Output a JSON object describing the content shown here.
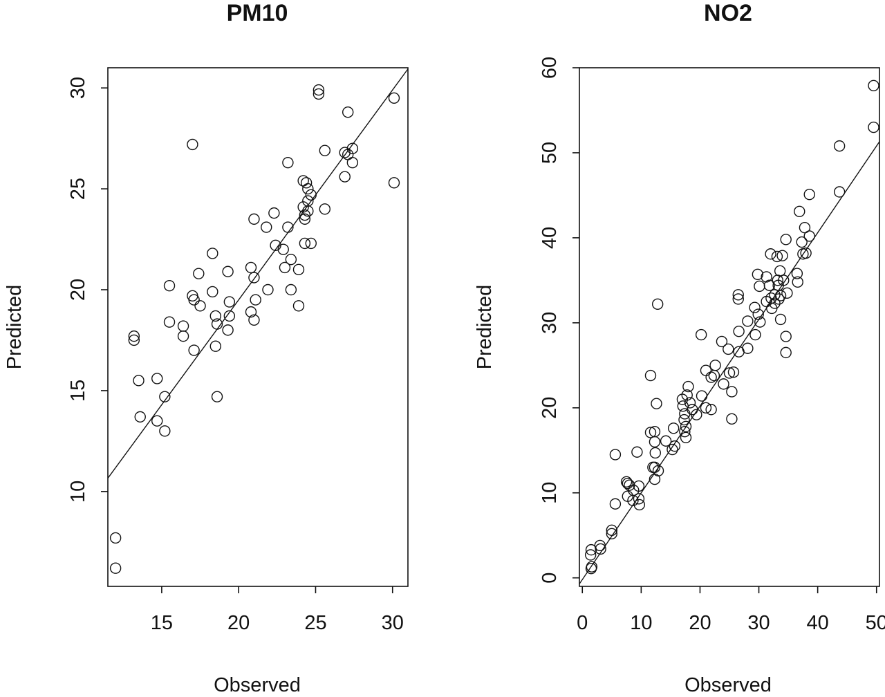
{
  "chart_data": [
    {
      "type": "scatter",
      "title": "PM10",
      "xlabel": "Observed",
      "ylabel": "Predicted",
      "xlim": [
        11.5,
        31
      ],
      "ylim": [
        5.3,
        31
      ],
      "xticks": [
        "15",
        "20",
        "25",
        "30"
      ],
      "yticks": [
        "10",
        "15",
        "20",
        "25",
        "30"
      ],
      "grid": false,
      "fit_line": {
        "intercept": -1.3,
        "slope": 1.04
      },
      "points": [
        {
          "x": 12.0,
          "y": 7.7
        },
        {
          "x": 12.0,
          "y": 6.2
        },
        {
          "x": 13.2,
          "y": 17.7
        },
        {
          "x": 13.2,
          "y": 17.5
        },
        {
          "x": 13.5,
          "y": 15.5
        },
        {
          "x": 13.6,
          "y": 13.7
        },
        {
          "x": 14.7,
          "y": 15.6
        },
        {
          "x": 14.7,
          "y": 13.5
        },
        {
          "x": 15.2,
          "y": 14.7
        },
        {
          "x": 15.2,
          "y": 13.0
        },
        {
          "x": 15.5,
          "y": 20.2
        },
        {
          "x": 15.5,
          "y": 18.4
        },
        {
          "x": 16.4,
          "y": 18.2
        },
        {
          "x": 16.4,
          "y": 17.7
        },
        {
          "x": 17.0,
          "y": 27.2
        },
        {
          "x": 17.0,
          "y": 19.7
        },
        {
          "x": 17.1,
          "y": 19.5
        },
        {
          "x": 17.1,
          "y": 17.0
        },
        {
          "x": 17.4,
          "y": 20.8
        },
        {
          "x": 17.5,
          "y": 19.2
        },
        {
          "x": 18.3,
          "y": 21.8
        },
        {
          "x": 18.3,
          "y": 19.9
        },
        {
          "x": 18.5,
          "y": 18.7
        },
        {
          "x": 18.6,
          "y": 18.3
        },
        {
          "x": 18.5,
          "y": 17.2
        },
        {
          "x": 18.6,
          "y": 14.7
        },
        {
          "x": 19.3,
          "y": 20.9
        },
        {
          "x": 19.4,
          "y": 19.4
        },
        {
          "x": 19.4,
          "y": 18.7
        },
        {
          "x": 19.3,
          "y": 18.0
        },
        {
          "x": 20.8,
          "y": 21.1
        },
        {
          "x": 20.8,
          "y": 18.9
        },
        {
          "x": 21.0,
          "y": 23.5
        },
        {
          "x": 21.0,
          "y": 20.6
        },
        {
          "x": 21.1,
          "y": 19.5
        },
        {
          "x": 21.0,
          "y": 18.5
        },
        {
          "x": 21.8,
          "y": 23.1
        },
        {
          "x": 21.9,
          "y": 20.0
        },
        {
          "x": 22.3,
          "y": 23.8
        },
        {
          "x": 22.4,
          "y": 22.2
        },
        {
          "x": 22.9,
          "y": 22.0
        },
        {
          "x": 23.0,
          "y": 21.1
        },
        {
          "x": 23.2,
          "y": 26.3
        },
        {
          "x": 23.2,
          "y": 23.1
        },
        {
          "x": 23.4,
          "y": 21.5
        },
        {
          "x": 23.4,
          "y": 20.0
        },
        {
          "x": 23.9,
          "y": 21.0
        },
        {
          "x": 23.9,
          "y": 19.2
        },
        {
          "x": 24.2,
          "y": 25.4
        },
        {
          "x": 24.4,
          "y": 25.3
        },
        {
          "x": 24.5,
          "y": 25.0
        },
        {
          "x": 24.2,
          "y": 24.1
        },
        {
          "x": 24.5,
          "y": 24.4
        },
        {
          "x": 24.3,
          "y": 23.7
        },
        {
          "x": 24.3,
          "y": 23.5
        },
        {
          "x": 24.5,
          "y": 23.9
        },
        {
          "x": 24.3,
          "y": 22.3
        },
        {
          "x": 24.7,
          "y": 22.3
        },
        {
          "x": 24.7,
          "y": 24.7
        },
        {
          "x": 25.2,
          "y": 29.9
        },
        {
          "x": 25.2,
          "y": 29.7
        },
        {
          "x": 25.6,
          "y": 26.9
        },
        {
          "x": 25.6,
          "y": 24.0
        },
        {
          "x": 26.9,
          "y": 26.8
        },
        {
          "x": 26.9,
          "y": 25.6
        },
        {
          "x": 27.1,
          "y": 28.8
        },
        {
          "x": 27.1,
          "y": 26.7
        },
        {
          "x": 27.4,
          "y": 27.0
        },
        {
          "x": 27.4,
          "y": 26.3
        },
        {
          "x": 30.1,
          "y": 29.5
        },
        {
          "x": 30.1,
          "y": 25.3
        }
      ]
    },
    {
      "type": "scatter",
      "title": "NO2",
      "xlabel": "Observed",
      "ylabel": "Predicted",
      "xlim": [
        -0.5,
        50.5
      ],
      "ylim": [
        -1,
        60
      ],
      "xticks": [
        "0",
        "10",
        "20",
        "30",
        "40",
        "50"
      ],
      "yticks": [
        "0",
        "10",
        "20",
        "30",
        "40",
        "50",
        "60"
      ],
      "grid": false,
      "fit_line": {
        "intercept": -0.2,
        "slope": 1.02
      },
      "points": [
        {
          "x": 1.5,
          "y": 3.3
        },
        {
          "x": 1.4,
          "y": 2.7
        },
        {
          "x": 1.6,
          "y": 1.3
        },
        {
          "x": 1.5,
          "y": 1.1
        },
        {
          "x": 3.0,
          "y": 3.8
        },
        {
          "x": 3.1,
          "y": 3.4
        },
        {
          "x": 5.0,
          "y": 5.6
        },
        {
          "x": 5.0,
          "y": 5.2
        },
        {
          "x": 5.6,
          "y": 14.5
        },
        {
          "x": 5.6,
          "y": 8.7
        },
        {
          "x": 7.5,
          "y": 11.3
        },
        {
          "x": 7.7,
          "y": 11.1
        },
        {
          "x": 8.0,
          "y": 10.9
        },
        {
          "x": 7.7,
          "y": 9.6
        },
        {
          "x": 8.7,
          "y": 10.3
        },
        {
          "x": 8.6,
          "y": 9.1
        },
        {
          "x": 9.3,
          "y": 14.8
        },
        {
          "x": 9.6,
          "y": 10.8
        },
        {
          "x": 9.6,
          "y": 9.3
        },
        {
          "x": 9.7,
          "y": 8.6
        },
        {
          "x": 11.6,
          "y": 23.8
        },
        {
          "x": 11.6,
          "y": 17.1
        },
        {
          "x": 12.3,
          "y": 17.2
        },
        {
          "x": 12.3,
          "y": 16.0
        },
        {
          "x": 12.4,
          "y": 14.7
        },
        {
          "x": 12.0,
          "y": 13.0
        },
        {
          "x": 12.3,
          "y": 13.0
        },
        {
          "x": 12.6,
          "y": 20.5
        },
        {
          "x": 12.3,
          "y": 11.6
        },
        {
          "x": 12.9,
          "y": 12.6
        },
        {
          "x": 12.8,
          "y": 32.2
        },
        {
          "x": 14.2,
          "y": 16.1
        },
        {
          "x": 15.3,
          "y": 15.1
        },
        {
          "x": 15.5,
          "y": 17.6
        },
        {
          "x": 15.7,
          "y": 15.5
        },
        {
          "x": 17.0,
          "y": 21.0
        },
        {
          "x": 17.1,
          "y": 20.2
        },
        {
          "x": 17.4,
          "y": 19.3
        },
        {
          "x": 17.3,
          "y": 18.6
        },
        {
          "x": 17.6,
          "y": 17.8
        },
        {
          "x": 17.4,
          "y": 17.2
        },
        {
          "x": 17.6,
          "y": 16.5
        },
        {
          "x": 17.8,
          "y": 21.5
        },
        {
          "x": 18.0,
          "y": 22.5
        },
        {
          "x": 18.3,
          "y": 20.6
        },
        {
          "x": 18.7,
          "y": 19.8
        },
        {
          "x": 19.4,
          "y": 19.2
        },
        {
          "x": 20.2,
          "y": 28.6
        },
        {
          "x": 20.3,
          "y": 21.4
        },
        {
          "x": 21.0,
          "y": 24.4
        },
        {
          "x": 21.0,
          "y": 20.0
        },
        {
          "x": 21.9,
          "y": 23.6
        },
        {
          "x": 21.9,
          "y": 19.8
        },
        {
          "x": 22.4,
          "y": 23.8
        },
        {
          "x": 22.6,
          "y": 25.0
        },
        {
          "x": 23.7,
          "y": 27.8
        },
        {
          "x": 24.0,
          "y": 22.8
        },
        {
          "x": 24.8,
          "y": 26.9
        },
        {
          "x": 25.0,
          "y": 24.1
        },
        {
          "x": 25.4,
          "y": 21.9
        },
        {
          "x": 25.4,
          "y": 18.7
        },
        {
          "x": 25.7,
          "y": 24.2
        },
        {
          "x": 26.5,
          "y": 33.3
        },
        {
          "x": 26.5,
          "y": 32.8
        },
        {
          "x": 26.6,
          "y": 29.0
        },
        {
          "x": 26.6,
          "y": 26.6
        },
        {
          "x": 28.1,
          "y": 30.2
        },
        {
          "x": 28.1,
          "y": 27.0
        },
        {
          "x": 29.3,
          "y": 31.8
        },
        {
          "x": 29.4,
          "y": 28.6
        },
        {
          "x": 29.8,
          "y": 35.7
        },
        {
          "x": 29.9,
          "y": 31.0
        },
        {
          "x": 30.1,
          "y": 34.3
        },
        {
          "x": 30.2,
          "y": 30.1
        },
        {
          "x": 31.3,
          "y": 35.4
        },
        {
          "x": 31.3,
          "y": 32.5
        },
        {
          "x": 31.8,
          "y": 34.4
        },
        {
          "x": 32.0,
          "y": 38.1
        },
        {
          "x": 32.1,
          "y": 32.9
        },
        {
          "x": 32.2,
          "y": 31.7
        },
        {
          "x": 32.7,
          "y": 33.3
        },
        {
          "x": 32.7,
          "y": 32.3
        },
        {
          "x": 33.1,
          "y": 37.8
        },
        {
          "x": 33.2,
          "y": 35.0
        },
        {
          "x": 33.3,
          "y": 34.4
        },
        {
          "x": 33.4,
          "y": 32.8
        },
        {
          "x": 33.6,
          "y": 36.1
        },
        {
          "x": 33.7,
          "y": 33.2
        },
        {
          "x": 33.7,
          "y": 30.4
        },
        {
          "x": 34.0,
          "y": 37.9
        },
        {
          "x": 34.2,
          "y": 35.0
        },
        {
          "x": 34.6,
          "y": 39.8
        },
        {
          "x": 34.6,
          "y": 28.4
        },
        {
          "x": 34.6,
          "y": 26.5
        },
        {
          "x": 34.8,
          "y": 33.5
        },
        {
          "x": 36.5,
          "y": 35.8
        },
        {
          "x": 36.6,
          "y": 34.8
        },
        {
          "x": 36.9,
          "y": 43.1
        },
        {
          "x": 37.3,
          "y": 39.5
        },
        {
          "x": 37.5,
          "y": 38.1
        },
        {
          "x": 37.8,
          "y": 41.2
        },
        {
          "x": 38.0,
          "y": 38.2
        },
        {
          "x": 38.6,
          "y": 45.1
        },
        {
          "x": 38.6,
          "y": 40.2
        },
        {
          "x": 43.7,
          "y": 50.8
        },
        {
          "x": 43.7,
          "y": 45.4
        },
        {
          "x": 49.5,
          "y": 57.9
        },
        {
          "x": 49.5,
          "y": 53.0
        }
      ]
    }
  ]
}
